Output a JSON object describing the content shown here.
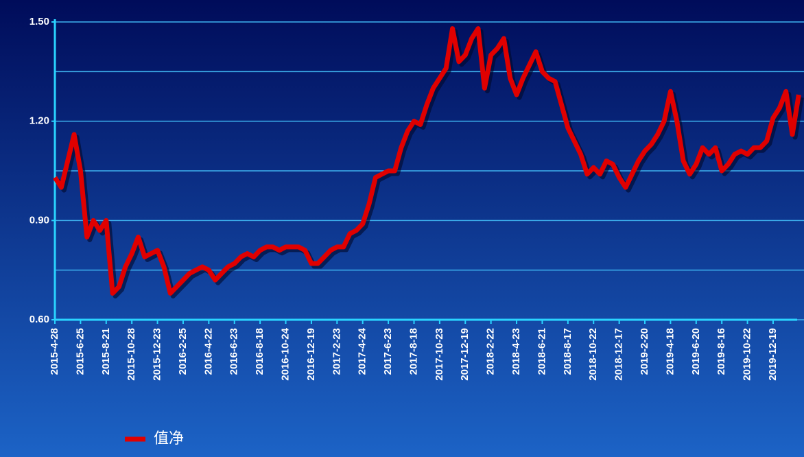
{
  "chart_data": {
    "type": "line",
    "categories": [
      "2015-4-28",
      null,
      null,
      null,
      "2015-6-25",
      null,
      null,
      null,
      "2015-8-21",
      null,
      null,
      null,
      "2015-10-28",
      null,
      null,
      null,
      "2015-12-23",
      null,
      null,
      null,
      "2016-2-25",
      null,
      null,
      null,
      "2016-4-22",
      null,
      null,
      null,
      "2016-6-23",
      null,
      null,
      null,
      "2016-8-18",
      null,
      null,
      null,
      "2016-10-24",
      null,
      null,
      null,
      "2016-12-19",
      null,
      null,
      null,
      "2017-2-23",
      null,
      null,
      null,
      "2017-4-24",
      null,
      null,
      null,
      "2017-6-23",
      null,
      null,
      null,
      "2017-8-18",
      null,
      null,
      null,
      "2017-10-23",
      null,
      null,
      null,
      "2017-12-19",
      null,
      null,
      null,
      "2018-2-22",
      null,
      null,
      null,
      "2018-4-23",
      null,
      null,
      null,
      "2018-6-21",
      null,
      null,
      null,
      "2018-8-17",
      null,
      null,
      null,
      "2018-10-22",
      null,
      null,
      null,
      "2018-12-17",
      null,
      null,
      null,
      "2019-2-20",
      null,
      null,
      null,
      "2019-4-18",
      null,
      null,
      null,
      "2019-6-20",
      null,
      null,
      null,
      "2019-8-16",
      null,
      null,
      null,
      "2019-10-22",
      null,
      null,
      null,
      "2019-12-19",
      null,
      null,
      null,
      null
    ],
    "series": [
      {
        "name": "值净",
        "color": "#e00000",
        "values": [
          1.03,
          1.0,
          1.08,
          1.16,
          1.05,
          0.85,
          0.9,
          0.87,
          0.9,
          0.68,
          0.7,
          0.76,
          0.8,
          0.85,
          0.79,
          0.8,
          0.81,
          0.76,
          0.68,
          0.7,
          0.72,
          0.74,
          0.75,
          0.76,
          0.75,
          0.72,
          0.74,
          0.76,
          0.77,
          0.79,
          0.8,
          0.79,
          0.81,
          0.82,
          0.82,
          0.81,
          0.82,
          0.82,
          0.82,
          0.81,
          0.77,
          0.77,
          0.79,
          0.81,
          0.82,
          0.82,
          0.86,
          0.87,
          0.89,
          0.95,
          1.03,
          1.04,
          1.05,
          1.05,
          1.12,
          1.17,
          1.2,
          1.19,
          1.25,
          1.3,
          1.33,
          1.36,
          1.48,
          1.38,
          1.4,
          1.45,
          1.48,
          1.3,
          1.4,
          1.42,
          1.45,
          1.33,
          1.28,
          1.33,
          1.37,
          1.41,
          1.35,
          1.33,
          1.32,
          1.25,
          1.18,
          1.14,
          1.1,
          1.04,
          1.06,
          1.04,
          1.08,
          1.07,
          1.03,
          1.0,
          1.04,
          1.08,
          1.11,
          1.13,
          1.16,
          1.2,
          1.29,
          1.2,
          1.08,
          1.04,
          1.07,
          1.12,
          1.1,
          1.12,
          1.05,
          1.07,
          1.1,
          1.11,
          1.1,
          1.12,
          1.12,
          1.14,
          1.21,
          1.24,
          1.29,
          1.16,
          1.28
        ]
      }
    ],
    "ylim": [
      0.6,
      1.5
    ],
    "yticks": [
      {
        "value": 0.6,
        "label": "0.60"
      },
      {
        "value": 0.9,
        "label": "0.90"
      },
      {
        "value": 1.2,
        "label": "1.20"
      },
      {
        "value": 1.5,
        "label": "1.50"
      }
    ],
    "grid": true
  }
}
